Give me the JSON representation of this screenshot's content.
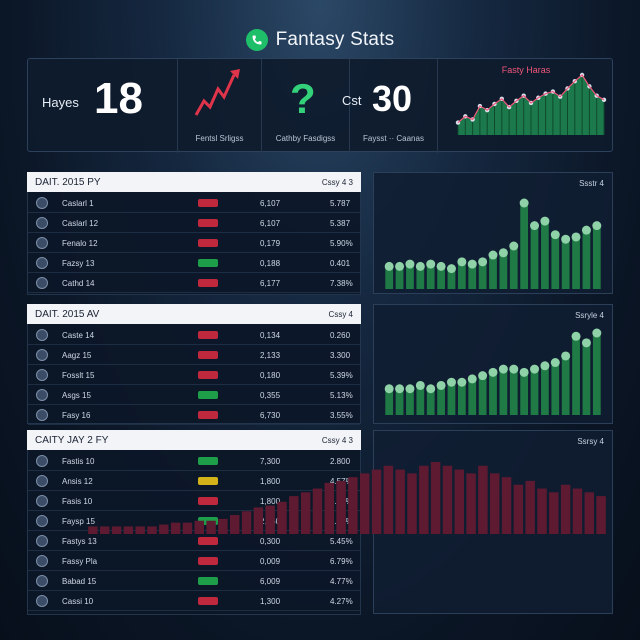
{
  "app": {
    "title": "Fantasy Stats",
    "logo_icon": "phone-icon",
    "accent": "#1fbf6a"
  },
  "top_stats": {
    "player_name": "Hayes",
    "player_score": "18",
    "trend_label": "Fentsl Srligss",
    "question_label": "Cathby Fasdigss",
    "cost_label": "Cst",
    "cost_value": "30",
    "cost_sub": "Faysst ·· Caanas",
    "mini_chart_title": "Fasty Haras"
  },
  "sections": [
    {
      "title": "DAIT. 2015 PY",
      "right": "Cssy 4 3",
      "chart_title": "Ssstr 4",
      "rows": [
        {
          "name": "Caslarl 1",
          "badge": "red",
          "v1": "6,107",
          "v2": "5.787"
        },
        {
          "name": "Caslarl 12",
          "badge": "red",
          "v1": "6,107",
          "v2": "5.387"
        },
        {
          "name": "Fenalo 12",
          "badge": "red",
          "v1": "0,179",
          "v2": "5.90%"
        },
        {
          "name": "Fazsy 13",
          "badge": "green",
          "v1": "0,188",
          "v2": "0.401"
        },
        {
          "name": "Cathd 14",
          "badge": "red",
          "v1": "6,177",
          "v2": "7.38%"
        }
      ]
    },
    {
      "title": "DAIT. 2015 AV",
      "right": "Cssy 4",
      "chart_title": "Ssryle 4",
      "rows": [
        {
          "name": "Caste 14",
          "badge": "red",
          "v1": "0,134",
          "v2": "0.260"
        },
        {
          "name": "Aagz 15",
          "badge": "red",
          "v1": "2,133",
          "v2": "3.300"
        },
        {
          "name": "Fosslt 15",
          "badge": "red",
          "v1": "0,180",
          "v2": "5.39%"
        },
        {
          "name": "Asgs 15",
          "badge": "green",
          "v1": "0,355",
          "v2": "5.13%"
        },
        {
          "name": "Fasy 16",
          "badge": "red",
          "v1": "6,730",
          "v2": "3.55%"
        }
      ]
    },
    {
      "title": "CAITY JAY 2 FY",
      "right": "Cssy 4 3",
      "chart_title": "Ssrsy 4",
      "rows": [
        {
          "name": "Fastis 10",
          "badge": "green",
          "v1": "7,300",
          "v2": "2.800"
        },
        {
          "name": "Ansis 12",
          "badge": "yellow",
          "v1": "1,800",
          "v2": "4.57%"
        },
        {
          "name": "Fasis 10",
          "badge": "red",
          "v1": "1,800",
          "v2": "6.26%"
        },
        {
          "name": "Faysp 15",
          "badge": "green",
          "v1": "2,160",
          "v2": "1.35%"
        },
        {
          "name": "Fastys 13",
          "badge": "red",
          "v1": "0,300",
          "v2": "5.45%"
        },
        {
          "name": "Fassy Pla",
          "badge": "red",
          "v1": "0,009",
          "v2": "6.79%"
        },
        {
          "name": "Babad 15",
          "badge": "green",
          "v1": "6,009",
          "v2": "4.77%"
        },
        {
          "name": "Cassi 10",
          "badge": "red",
          "v1": "1,300",
          "v2": "4.27%"
        }
      ]
    }
  ],
  "chart_data": [
    {
      "type": "line",
      "title": "Fasty Haras",
      "values": [
        12,
        18,
        15,
        28,
        24,
        30,
        35,
        27,
        33,
        38,
        31,
        36,
        40,
        42,
        37,
        45,
        52,
        58,
        47,
        38,
        34
      ]
    },
    {
      "type": "bar",
      "title": "Ssstr 4",
      "values": [
        5,
        5,
        5.5,
        5,
        5.5,
        5,
        4.5,
        6,
        5.5,
        6,
        7.5,
        8,
        9.5,
        19,
        14,
        15,
        12,
        11,
        11.5,
        13,
        14
      ]
    },
    {
      "type": "bar",
      "title": "Ssryle 4",
      "values": [
        4,
        4,
        4,
        4.5,
        4,
        4.5,
        5,
        5,
        5.5,
        6,
        6.5,
        7,
        7,
        6.5,
        7,
        7.5,
        8,
        9,
        12,
        11,
        12.5
      ]
    },
    {
      "type": "bar",
      "title": "Ssrsy 4",
      "values": [
        2,
        2,
        2,
        2,
        2,
        2,
        2.5,
        3,
        3,
        3.5,
        3.5,
        4,
        5,
        6,
        7,
        7.5,
        8.5,
        10,
        11,
        12,
        13.5,
        14,
        15,
        16,
        17,
        18,
        17,
        16,
        18,
        19,
        18,
        17,
        16,
        18,
        16,
        15,
        13,
        14,
        12,
        11,
        13,
        12,
        11,
        10
      ]
    }
  ],
  "colors": {
    "badge_red": "#c0283e",
    "badge_green": "#1f9e4a",
    "badge_yellow": "#d4b21a",
    "bar_green": "#1f7a45",
    "bar_red": "#5e1a30",
    "trend_red": "#e0344a"
  }
}
